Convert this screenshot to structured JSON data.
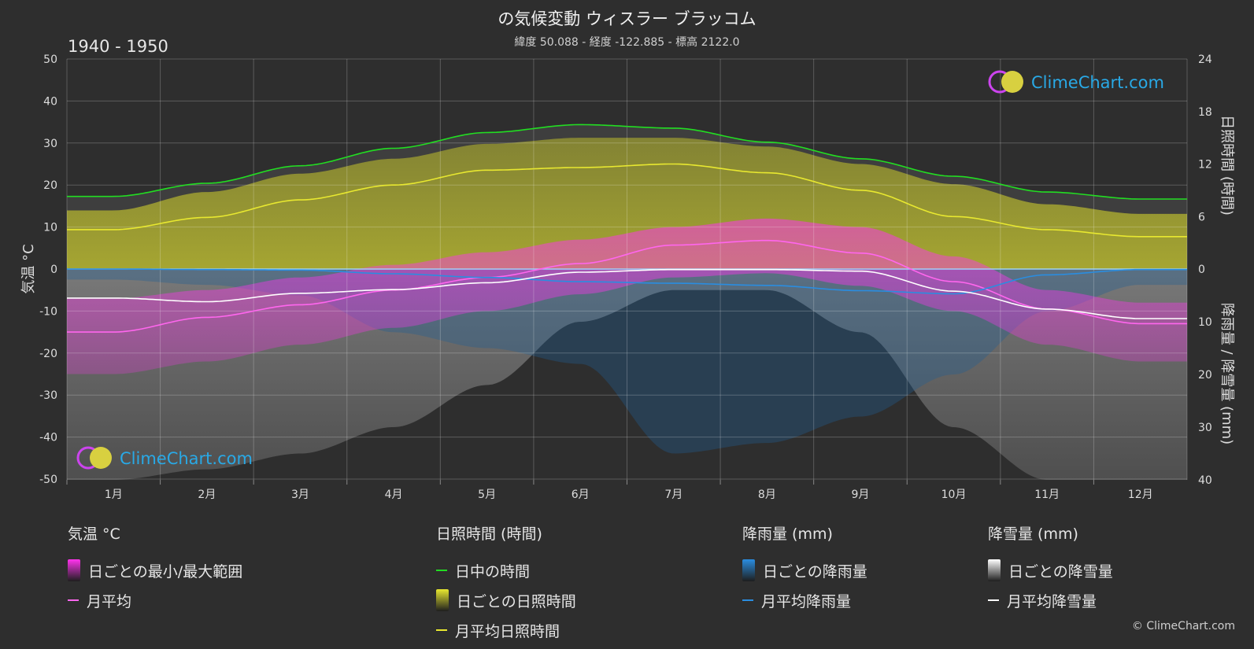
{
  "header": {
    "title": "の気候変動 ウィスラー ブラッコム",
    "subtitle": "緯度 50.088 - 経度 -122.885 - 標高 2122.0",
    "period": "1940 - 1950",
    "copyright": "© ClimeChart.com",
    "logo_text": "ClimeChart.com"
  },
  "colors": {
    "background": "#2e2e2e",
    "daylight": "#22dd22",
    "sunshine": "#e8e830",
    "temperature": "#ff66ee",
    "rain": "#2a8de0",
    "snow": "#ffffff",
    "logo": "#29a9e6"
  },
  "chart_data": {
    "type": "line",
    "categories": [
      "1月",
      "2月",
      "3月",
      "4月",
      "5月",
      "6月",
      "7月",
      "8月",
      "9月",
      "10月",
      "11月",
      "12月"
    ],
    "axes": {
      "left": {
        "title": "気温 °C",
        "min": -50,
        "max": 50,
        "ticks": [
          "50",
          "40",
          "30",
          "20",
          "10",
          "0",
          "-10",
          "-20",
          "-30",
          "-40",
          "-50"
        ]
      },
      "right_top": {
        "title": "日照時間 (時間)",
        "min": 0,
        "max": 24,
        "ticks": [
          "24",
          "18",
          "12",
          "6",
          "0"
        ]
      },
      "right_bottom": {
        "title": "降雨量 / 降雪量 (mm)",
        "min": 0,
        "max": 40,
        "ticks": [
          "10",
          "20",
          "30",
          "40"
        ]
      }
    },
    "grid": true,
    "series": [
      {
        "name": "日中の時間",
        "unit": "hours",
        "values": [
          8.3,
          9.8,
          11.8,
          13.8,
          15.6,
          16.5,
          16.1,
          14.5,
          12.6,
          10.6,
          8.8,
          8.0
        ]
      },
      {
        "name": "月平均日照時間",
        "unit": "hours",
        "values": [
          4.5,
          5.9,
          7.9,
          9.6,
          11.3,
          11.6,
          12.0,
          11.0,
          9.0,
          6.0,
          4.5,
          3.7
        ]
      },
      {
        "name": "月平均",
        "unit": "°C",
        "values": [
          -15.0,
          -11.5,
          -8.5,
          -5.0,
          -2.0,
          1.3,
          5.7,
          6.8,
          3.8,
          -3.0,
          -9.5,
          -13.0
        ]
      },
      {
        "name": "月平均降雨量",
        "unit": "mm",
        "values": [
          0.0,
          0.1,
          0.2,
          0.9,
          1.6,
          2.4,
          2.7,
          3.1,
          4.1,
          4.7,
          1.1,
          0.1
        ]
      },
      {
        "name": "月平均降雪量",
        "unit": "mm",
        "values": [
          5.5,
          6.2,
          4.6,
          3.9,
          2.6,
          0.6,
          0.1,
          0.1,
          0.4,
          4.2,
          7.6,
          9.4
        ]
      }
    ],
    "daily_ranges": {
      "temp_range_max": [
        -7,
        -5,
        -2,
        1,
        4,
        7,
        10,
        12,
        10,
        3,
        -5,
        -8
      ],
      "temp_range_min": [
        -25,
        -22,
        -18,
        -14,
        -10,
        -6,
        -2,
        -1,
        -4,
        -10,
        -18,
        -22
      ],
      "sunshine_max": [
        6.7,
        8.8,
        10.9,
        12.6,
        14.3,
        15.0,
        15.0,
        14.0,
        12.0,
        9.7,
        7.4,
        6.3
      ],
      "daily_snow_max": [
        40,
        38,
        35,
        30,
        22,
        10,
        4,
        4,
        12,
        30,
        40,
        40
      ],
      "daily_rain_max": [
        2,
        3,
        5,
        12,
        15,
        18,
        35,
        33,
        28,
        20,
        8,
        3
      ]
    }
  },
  "legend": [
    {
      "head": "気温 °C",
      "items": [
        {
          "kind": "box",
          "label": "日ごとの最小/最大範囲",
          "color": "#ff33ee"
        },
        {
          "kind": "line",
          "label": "月平均",
          "color": "#ff66ee"
        }
      ]
    },
    {
      "head": "日照時間 (時間)",
      "items": [
        {
          "kind": "line",
          "label": "日中の時間",
          "color": "#22dd22"
        },
        {
          "kind": "box",
          "label": "日ごとの日照時間",
          "color": "#e8e830"
        },
        {
          "kind": "line",
          "label": "月平均日照時間",
          "color": "#e8e830"
        }
      ]
    },
    {
      "head": "降雨量 (mm)",
      "items": [
        {
          "kind": "box",
          "label": "日ごとの降雨量",
          "color": "#2a8de0"
        },
        {
          "kind": "line",
          "label": "月平均降雨量",
          "color": "#2a8de0"
        }
      ]
    },
    {
      "head": "降雪量 (mm)",
      "items": [
        {
          "kind": "box",
          "label": "日ごとの降雪量",
          "color": "#ffffff"
        },
        {
          "kind": "line",
          "label": "月平均降雪量",
          "color": "#ffffff"
        }
      ]
    }
  ]
}
